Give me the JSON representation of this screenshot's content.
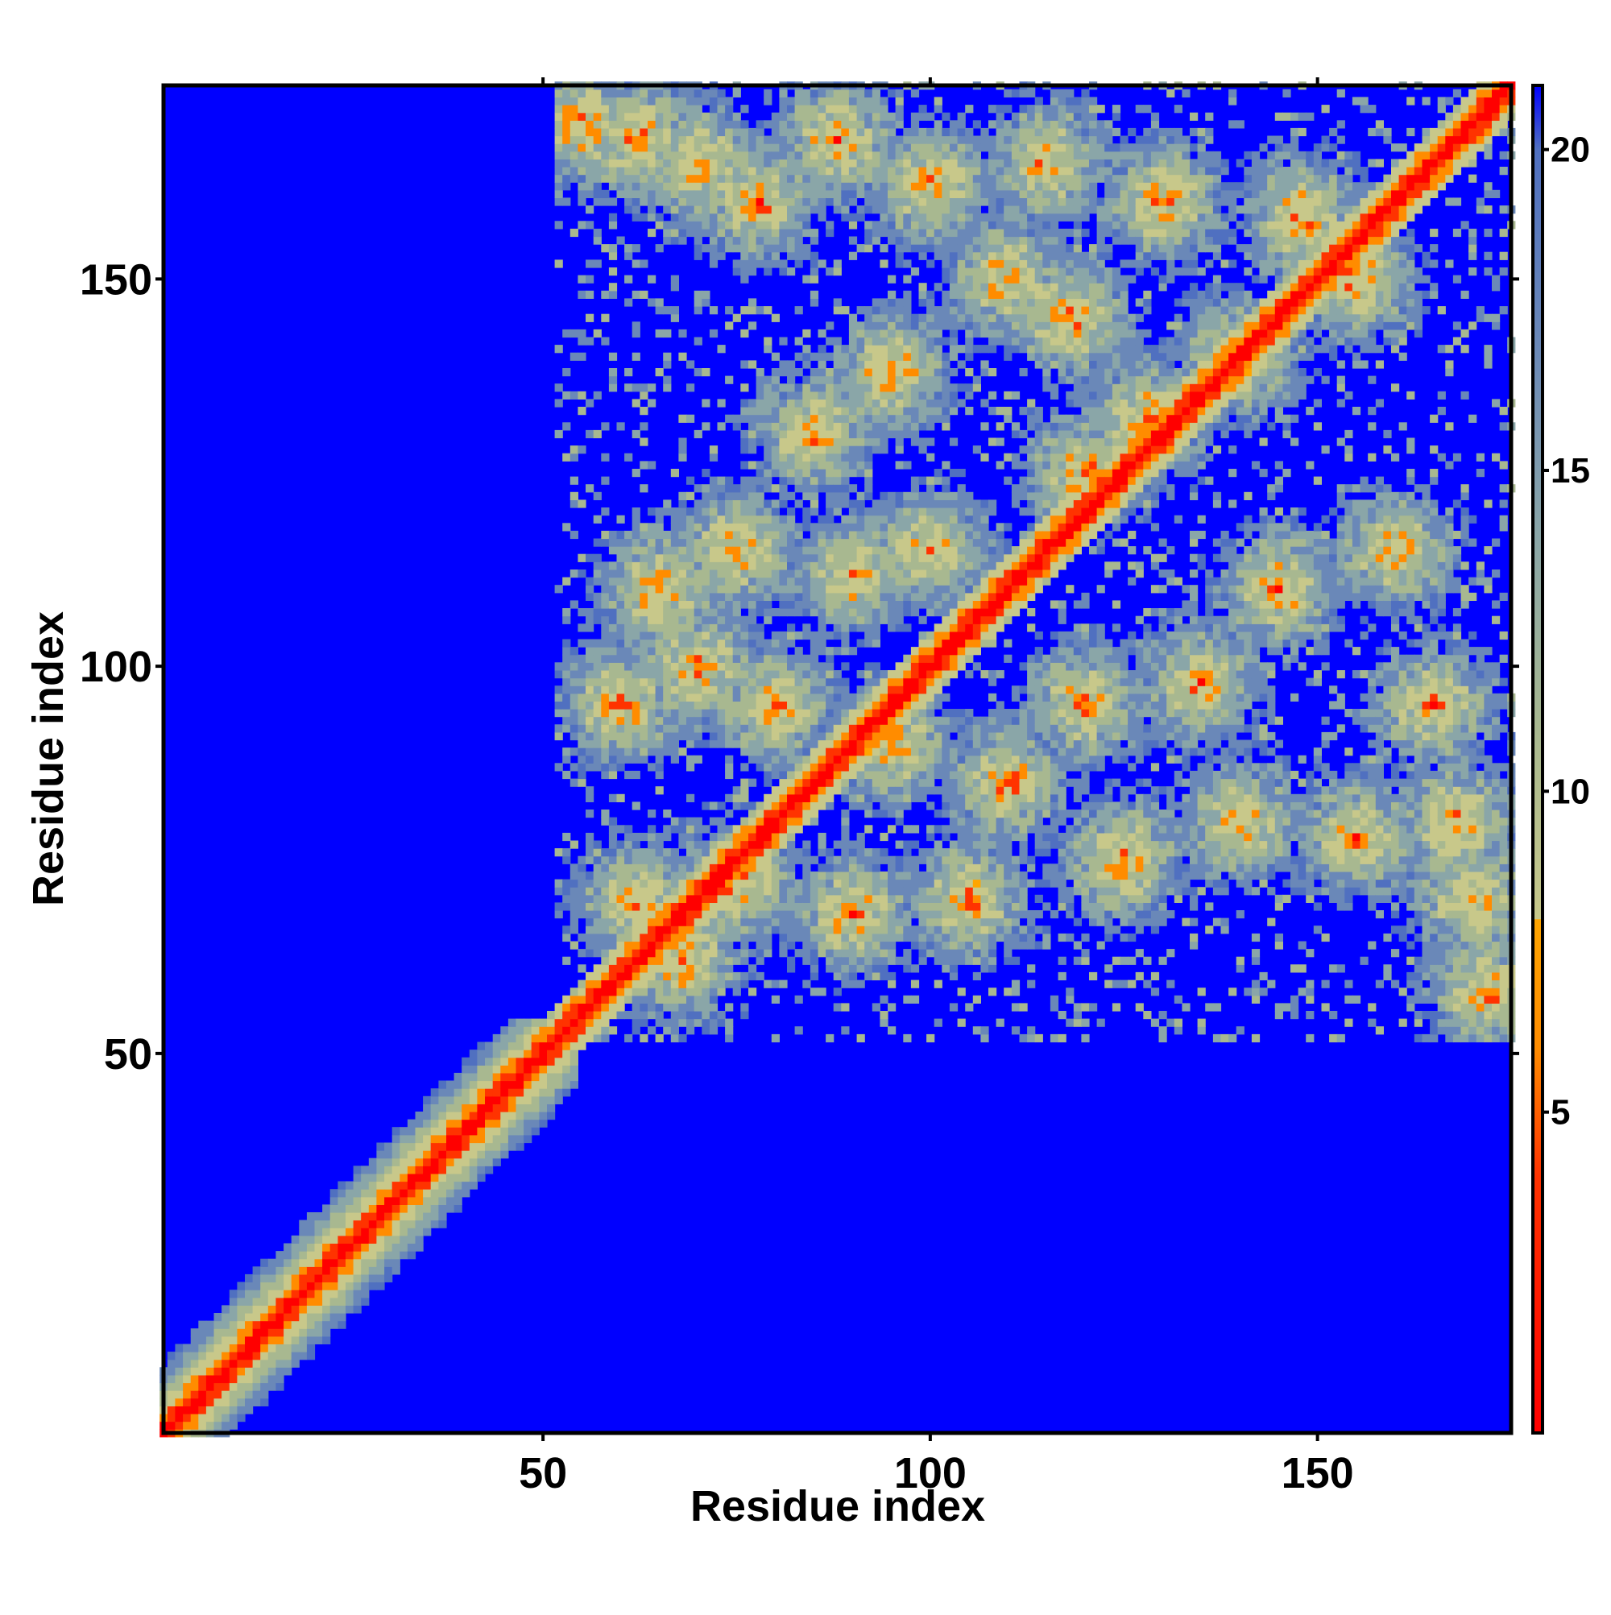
{
  "chart_data": {
    "type": "heatmap",
    "title": "",
    "xlabel": "Residue index",
    "ylabel": "Residue index",
    "xlim": [
      1,
      175
    ],
    "ylim": [
      1,
      175
    ],
    "x_ticks": [
      50,
      100,
      150
    ],
    "y_ticks": [
      50,
      100,
      150
    ],
    "x_tick_labels": [
      "50",
      "100",
      "150"
    ],
    "y_tick_labels": [
      "50",
      "100",
      "150"
    ],
    "colorbar": {
      "min": 0,
      "max": 21,
      "ticks": [
        5,
        10,
        15,
        20
      ],
      "tick_labels": [
        "5",
        "10",
        "15",
        "20"
      ],
      "colors": [
        {
          "value": 0,
          "color": "#ff0000"
        },
        {
          "value": 4,
          "color": "#ff3300"
        },
        {
          "value": 6,
          "color": "#ff8c00"
        },
        {
          "value": 8,
          "color": "#ffa500"
        },
        {
          "value": 8.01,
          "color": "#c8c88a"
        },
        {
          "value": 11,
          "color": "#a8b890"
        },
        {
          "value": 14,
          "color": "#8aa6a8"
        },
        {
          "value": 17,
          "color": "#6a88b8"
        },
        {
          "value": 20,
          "color": "#5070c0"
        },
        {
          "value": 21,
          "color": "#0000ff"
        }
      ]
    },
    "matrix_description": "Symmetric-like residue distance map; near-diagonal contacts in red/orange; background (>=21) in blue",
    "contact_regions": [
      {
        "x": [
          1,
          175
        ],
        "y": [
          1,
          175
        ],
        "kind": "diagonal"
      },
      {
        "x": [
          52,
          175
        ],
        "y": [
          52,
          175
        ],
        "kind": "tertiary-contacts-upper"
      },
      {
        "x": [
          160,
          175
        ],
        "y": [
          52,
          100
        ],
        "kind": "tertiary-contacts-right"
      }
    ]
  }
}
